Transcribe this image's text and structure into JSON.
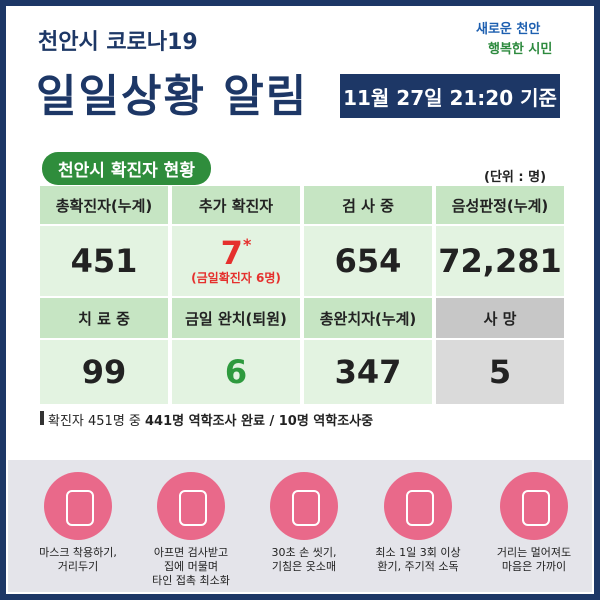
{
  "header": {
    "subtitle": "천안시 코로나19",
    "title": "일일상황 알림",
    "date": "11월 27일 21:20 기준",
    "logo": [
      "새로운 천안",
      "행복한 시민"
    ]
  },
  "section": {
    "title": "천안시 확진자 현황",
    "unit": "(단위 : 명)"
  },
  "table": {
    "rows": [
      {
        "headers": [
          "총확진자(누계)",
          "추가 확진자",
          "검 사 중",
          "음성판정(누계)"
        ],
        "values": [
          "451",
          "7",
          "654",
          "72,281"
        ]
      },
      {
        "headers": [
          "치 료 중",
          "금일 완치(퇴원)",
          "총완치자(누계)",
          "사  망"
        ],
        "values": [
          "99",
          "6",
          "347",
          "5"
        ]
      }
    ],
    "mark": "*",
    "note": "(금일확진자 6명)"
  },
  "footnote": {
    "plain": "확진자 451명 중 ",
    "bold": "441명 역학조사 완료 / 10명 역학조사중"
  },
  "tips": [
    {
      "lines": [
        "마스크 착용하기,",
        "거리두기"
      ]
    },
    {
      "lines": [
        "아프면 검사받고",
        "집에 머물며",
        "타인 접촉 최소화"
      ]
    },
    {
      "lines": [
        "30초 손 씻기,",
        "기침은 옷소매"
      ]
    },
    {
      "lines": [
        "최소 1일 3회 이상",
        "환기, 주기적 소독"
      ]
    },
    {
      "lines": [
        "거리는 멀어져도",
        "마음은 가까이"
      ]
    }
  ]
}
